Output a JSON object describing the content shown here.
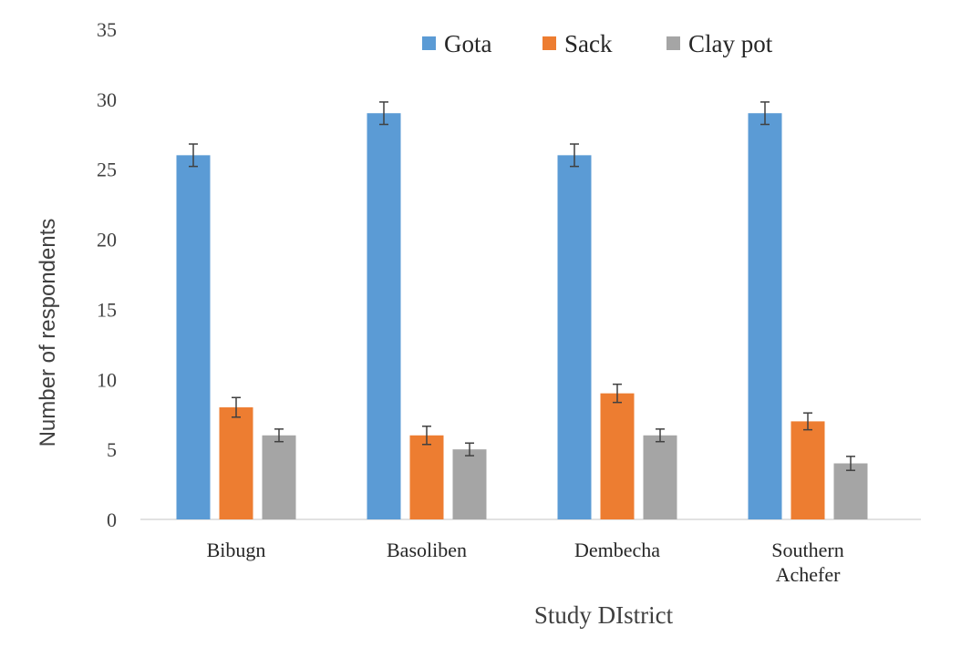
{
  "chart_data": {
    "type": "bar",
    "title": "",
    "xlabel": "Study DIstrict",
    "ylabel": "Number of respondents",
    "ylim": [
      0,
      35
    ],
    "yticks": [
      0,
      5,
      10,
      15,
      20,
      25,
      30,
      35
    ],
    "categories": [
      [
        "Bibugn"
      ],
      [
        "Basoliben"
      ],
      [
        "Dembecha"
      ],
      [
        "Southern",
        "Achefer"
      ]
    ],
    "series": [
      {
        "name": "Gota",
        "color": "#5B9BD5",
        "values": [
          26,
          29,
          26,
          29
        ],
        "errors": [
          0.8,
          0.8,
          0.8,
          0.8
        ]
      },
      {
        "name": "Sack",
        "color": "#ED7D31",
        "values": [
          8,
          6,
          9,
          7
        ],
        "errors": [
          0.7,
          0.65,
          0.65,
          0.6
        ]
      },
      {
        "name": "Clay pot",
        "color": "#A5A5A5",
        "values": [
          6,
          5,
          6,
          4
        ],
        "errors": [
          0.45,
          0.45,
          0.45,
          0.5
        ]
      }
    ],
    "legend": "top",
    "grid": false
  }
}
